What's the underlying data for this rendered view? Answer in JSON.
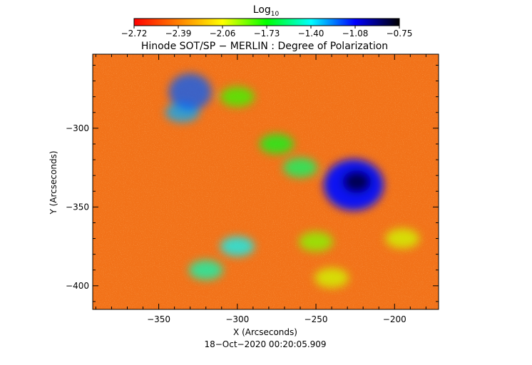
{
  "chart_data": {
    "type": "heatmap",
    "title": "Hinode SOT/SP − MERLIN : Degree of Polarization",
    "xlabel": "X (Arcseconds)",
    "ylabel": "Y (Arcseconds)",
    "xlim": [
      -392,
      -172
    ],
    "ylim": [
      -415,
      -253
    ],
    "x_ticks": [
      -350,
      -300,
      -250,
      -200
    ],
    "x_tick_labels": [
      "−350",
      "−300",
      "−250",
      "−200"
    ],
    "y_ticks": [
      -300,
      -350,
      -400
    ],
    "y_tick_labels": [
      "−300",
      "−350",
      "−400"
    ],
    "colorbar": {
      "label_main": "Log",
      "label_sub": "10",
      "range": [
        -2.72,
        -0.75
      ],
      "tick_labels": [
        "−2.72",
        "−2.39",
        "−2.06",
        "−1.73",
        "−1.40",
        "−1.08",
        "−0.75"
      ],
      "colors": [
        "#ff0000",
        "#ff8000",
        "#ffff00",
        "#00ff00",
        "#00ffff",
        "#0000ff",
        "#000000"
      ]
    },
    "background_color": "#f03a0e",
    "features": [
      {
        "kind": "sunspot umbra",
        "x": -224,
        "y": -334,
        "log_value": -0.85
      },
      {
        "kind": "sunspot penumbra",
        "x": -226,
        "y": -336,
        "log_value": -1.1
      },
      {
        "kind": "plage",
        "x": -335,
        "y": -290,
        "log_value": -1.3
      },
      {
        "kind": "plage",
        "x": -330,
        "y": -277,
        "log_value": -1.2
      },
      {
        "kind": "plage",
        "x": -300,
        "y": -280,
        "log_value": -1.8
      },
      {
        "kind": "plage",
        "x": -275,
        "y": -310,
        "log_value": -1.7
      },
      {
        "kind": "plage",
        "x": -260,
        "y": -325,
        "log_value": -1.6
      },
      {
        "kind": "plage",
        "x": -300,
        "y": -375,
        "log_value": -1.4
      },
      {
        "kind": "plage",
        "x": -320,
        "y": -390,
        "log_value": -1.5
      },
      {
        "kind": "plage",
        "x": -250,
        "y": -372,
        "log_value": -1.9
      },
      {
        "kind": "plage",
        "x": -240,
        "y": -395,
        "log_value": -2.0
      },
      {
        "kind": "plage",
        "x": -195,
        "y": -370,
        "log_value": -2.0
      }
    ]
  },
  "timestamp": "18−Oct−2020 00:20:05.909"
}
